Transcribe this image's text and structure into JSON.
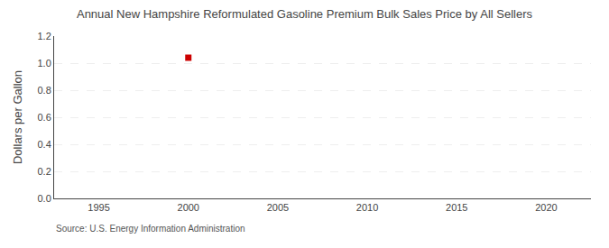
{
  "chart_data": {
    "type": "scatter",
    "title": "Annual New Hampshire Reformulated Gasoline Premium Bulk Sales Price by All Sellers",
    "ylabel": "Dollars per Gallon",
    "annotations": [
      "Source: U.S. Energy Information Administration"
    ],
    "x": [
      2000
    ],
    "values": [
      1.04
    ],
    "color": "#cc0000",
    "marker": "square",
    "xlim": [
      1992.5,
      2022.5
    ],
    "ylim": [
      0.0,
      1.2
    ],
    "xticks": [
      1995,
      2000,
      2005,
      2010,
      2015,
      2020
    ],
    "yticks": [
      {
        "value": 0,
        "label": "0.0"
      },
      0.2,
      0.4,
      0.6,
      0.8,
      {
        "value": 1,
        "label": "1.0"
      },
      1.2
    ],
    "grid": "y"
  }
}
